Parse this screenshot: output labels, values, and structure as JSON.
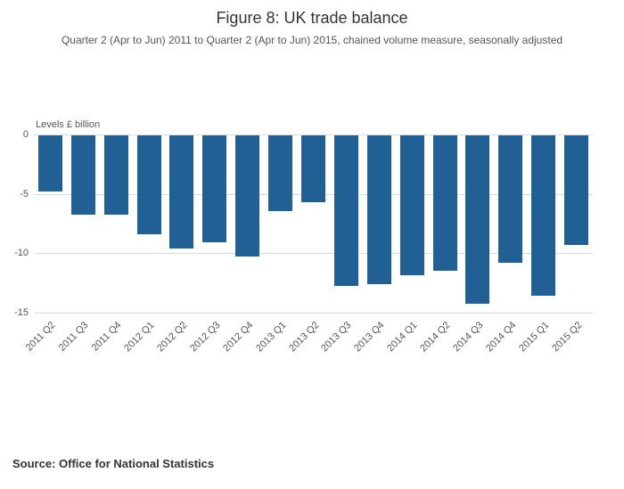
{
  "figure": {
    "title": "Figure 8: UK trade balance",
    "subtitle": "Quarter 2 (Apr to Jun) 2011 to Quarter 2 (Apr to Jun) 2015, chained volume measure, seasonally adjusted",
    "source": "Source: Office for National Statistics"
  },
  "chart_data": {
    "type": "bar",
    "title": "Figure 8: UK trade balance",
    "subtitle": "Quarter 2 (Apr to Jun) 2011 to Quarter 2 (Apr to Jun) 2015, chained volume measure, seasonally adjusted",
    "xlabel": "",
    "ylabel": "Levels £ billion",
    "ylim": [
      -15,
      0
    ],
    "yticks": [
      0,
      -5,
      -10,
      -15
    ],
    "grid": true,
    "legend": false,
    "bar_color": "#206095",
    "categories": [
      "2011 Q2",
      "2011 Q3",
      "2011 Q4",
      "2012 Q1",
      "2012 Q2",
      "2012 Q3",
      "2012 Q4",
      "2013 Q1",
      "2013 Q2",
      "2013 Q3",
      "2013 Q4",
      "2014 Q1",
      "2014 Q2",
      "2014 Q3",
      "2014 Q4",
      "2015 Q1",
      "2015 Q2"
    ],
    "values": [
      -4.7,
      -6.7,
      -6.7,
      -8.3,
      -9.5,
      -9.0,
      -10.2,
      -6.4,
      -5.6,
      -12.7,
      -12.5,
      -11.8,
      -11.4,
      -14.2,
      -10.7,
      -13.5,
      -9.2
    ],
    "source": "Source: Office for National Statistics"
  }
}
